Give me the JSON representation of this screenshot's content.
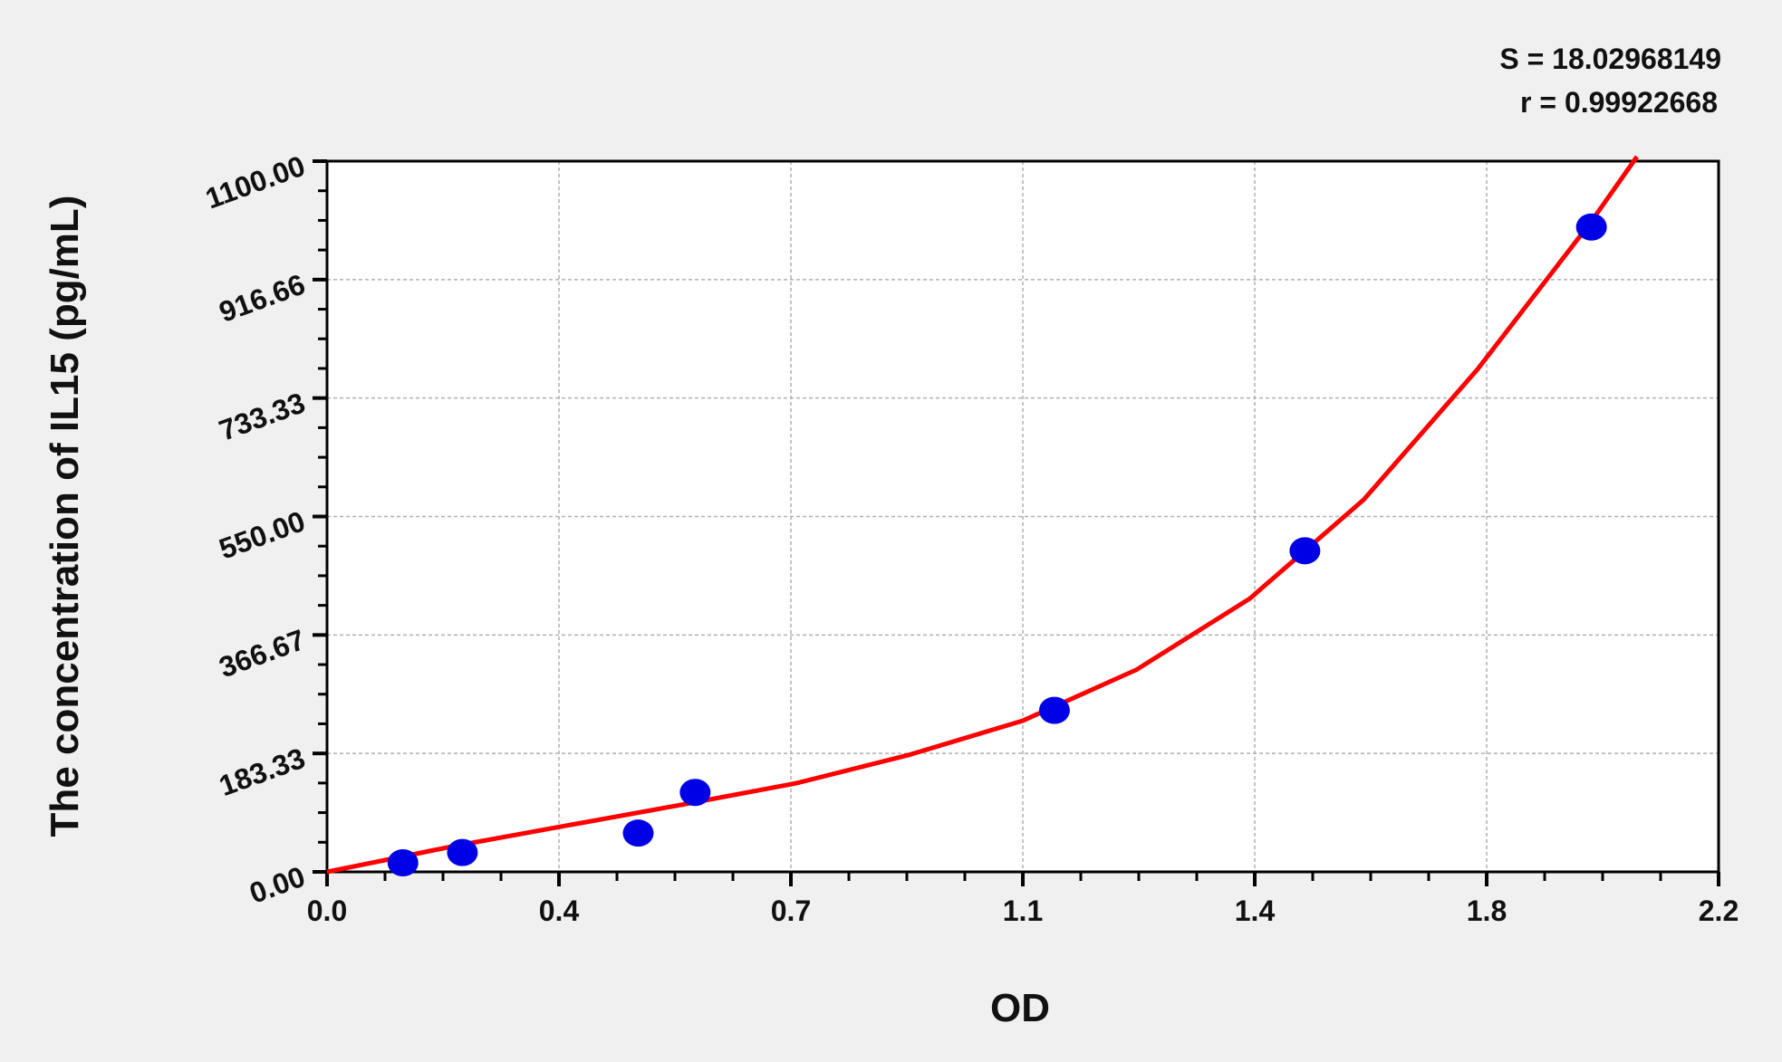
{
  "chart_data": {
    "type": "scatter",
    "title": "",
    "xlabel": "OD",
    "ylabel": "The concentration of IL15 (pg/mL)",
    "xlim": [
      0,
      2.2
    ],
    "ylim": [
      0,
      1100
    ],
    "x_tick_labels": [
      "0.0",
      "0.4",
      "0.7",
      "1.1",
      "1.4",
      "1.8",
      "2.2"
    ],
    "y_tick_labels": [
      "0.00",
      "183.33",
      "366.67",
      "550.00",
      "733.33",
      "916.66",
      "1100.00"
    ],
    "grid": true,
    "annotations": [
      "S = 18.02968149",
      "r = 0.99922668"
    ],
    "colors": {
      "points": "#0000e6",
      "curve": "#ff0000",
      "background": "#f0f0f0",
      "plot": "#ffffff"
    },
    "series": [
      {
        "kind": "points",
        "x": [
          0.12,
          0.214,
          0.492,
          0.582,
          1.15,
          1.546,
          1.999
        ],
        "y": [
          14,
          30,
          60,
          123,
          250,
          497,
          998
        ]
      },
      {
        "kind": "fit-curve",
        "x": [
          0,
          0.201,
          0.381,
          0.561,
          0.741,
          0.92,
          1.1,
          1.28,
          1.459,
          1.639,
          1.819,
          1.999,
          2.071
        ],
        "y": [
          0,
          40,
          72,
          104,
          137,
          181,
          234,
          313,
          423,
          576,
          778,
          1007,
          1107
        ]
      }
    ]
  }
}
